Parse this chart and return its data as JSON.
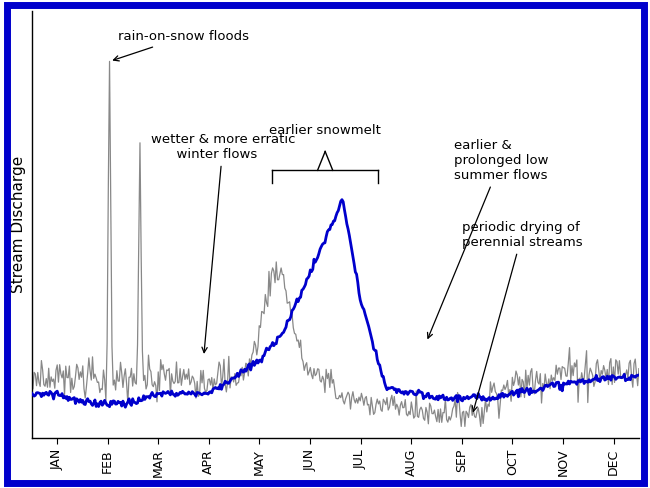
{
  "months": [
    "JAN",
    "FEB",
    "MAR",
    "APR",
    "MAY",
    "JUN",
    "JUL",
    "AUG",
    "SEP",
    "OCT",
    "NOV",
    "DEC"
  ],
  "border_color": "#0000CC",
  "gray_color": "#888888",
  "blue_color": "#0000CC",
  "background": "#ffffff",
  "ylabel": "Stream Discharge"
}
